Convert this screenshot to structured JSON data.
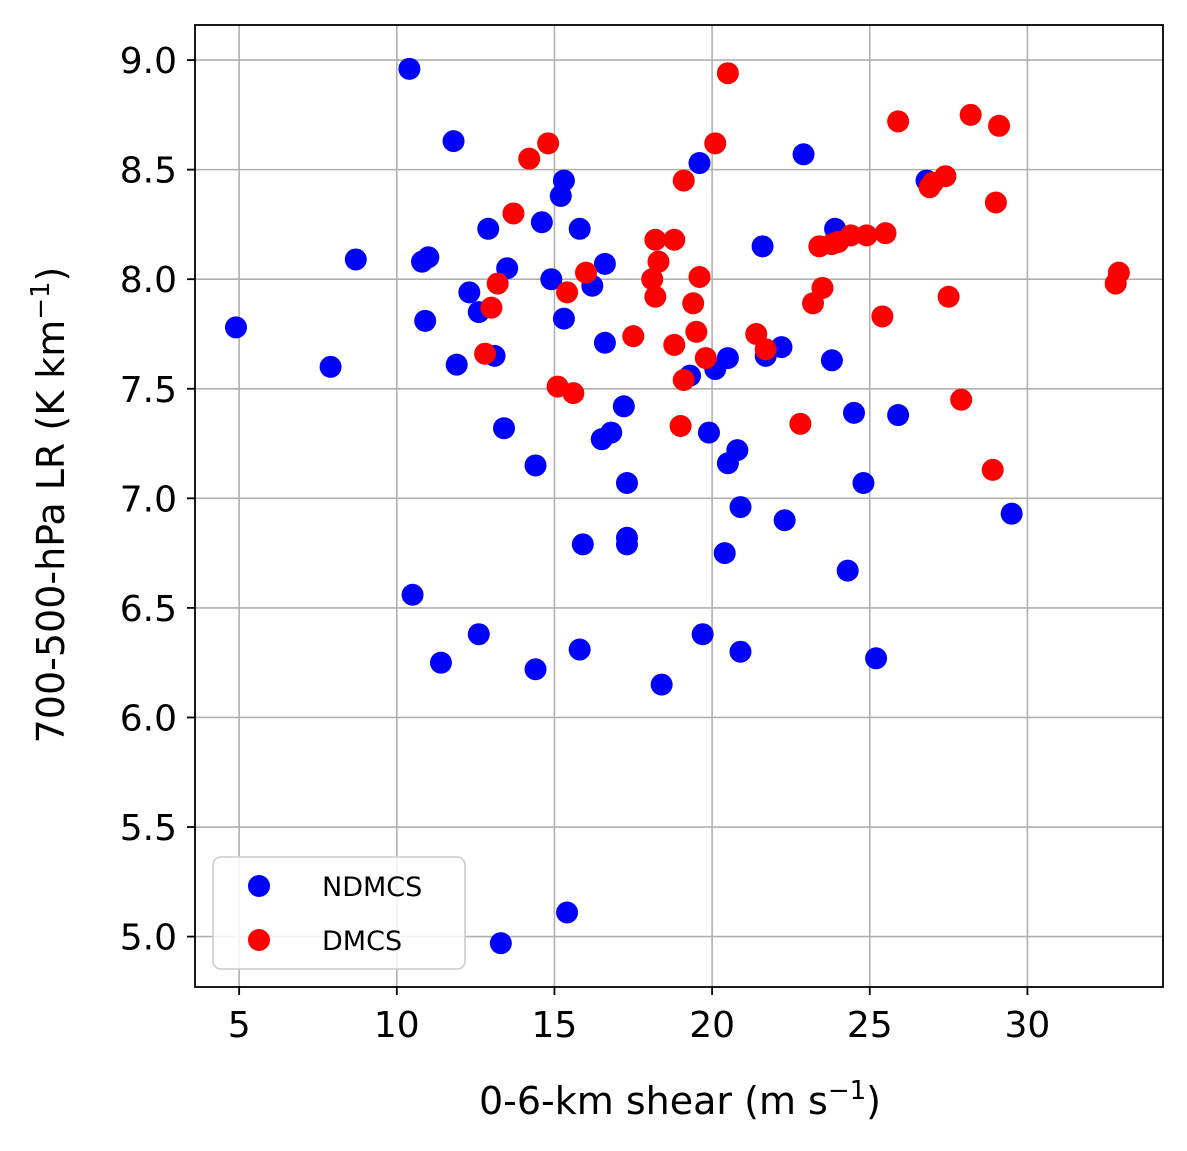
{
  "chart_data": {
    "type": "scatter",
    "xlabel_main": "0-6-km shear (m s",
    "xlabel_sup": "−1",
    "xlabel_end": ")",
    "ylabel_main": "700-500-hPa LR (K km",
    "ylabel_sup": "−1",
    "ylabel_end": ")",
    "xlim": [
      3.6,
      34.3
    ],
    "ylim": [
      4.77,
      9.16
    ],
    "x_ticks": [
      5,
      10,
      15,
      20,
      25,
      30
    ],
    "y_ticks": [
      5.0,
      5.5,
      6.0,
      6.5,
      7.0,
      7.5,
      8.0,
      8.5,
      9.0
    ],
    "x_tick_labels": [
      "5",
      "10",
      "15",
      "20",
      "25",
      "30"
    ],
    "y_tick_labels": [
      "5.0",
      "5.5",
      "6.0",
      "6.5",
      "7.0",
      "7.5",
      "8.0",
      "8.5",
      "9.0"
    ],
    "grid": true,
    "legend_position": "lower-left",
    "series": [
      {
        "name": "NDMCS",
        "color": "#0000ff",
        "points": [
          [
            4.9,
            7.78
          ],
          [
            7.9,
            7.6
          ],
          [
            8.7,
            8.09
          ],
          [
            10.4,
            8.96
          ],
          [
            10.5,
            6.56
          ],
          [
            10.8,
            8.08
          ],
          [
            11.0,
            8.1
          ],
          [
            10.9,
            7.81
          ],
          [
            11.4,
            6.25
          ],
          [
            11.8,
            8.63
          ],
          [
            11.9,
            7.61
          ],
          [
            12.3,
            7.94
          ],
          [
            12.6,
            7.85
          ],
          [
            12.6,
            6.38
          ],
          [
            12.9,
            8.23
          ],
          [
            13.1,
            7.65
          ],
          [
            13.3,
            4.97
          ],
          [
            13.4,
            7.32
          ],
          [
            13.5,
            8.05
          ],
          [
            14.4,
            7.15
          ],
          [
            14.4,
            6.22
          ],
          [
            14.6,
            8.26
          ],
          [
            14.9,
            8.0
          ],
          [
            15.2,
            8.38
          ],
          [
            15.3,
            8.45
          ],
          [
            15.3,
            7.82
          ],
          [
            15.4,
            5.11
          ],
          [
            15.8,
            8.23
          ],
          [
            15.8,
            6.31
          ],
          [
            15.9,
            6.79
          ],
          [
            16.2,
            7.97
          ],
          [
            16.5,
            7.27
          ],
          [
            16.6,
            8.07
          ],
          [
            16.6,
            7.71
          ],
          [
            16.8,
            7.3
          ],
          [
            17.2,
            7.42
          ],
          [
            17.3,
            7.07
          ],
          [
            17.3,
            6.79
          ],
          [
            17.3,
            6.82
          ],
          [
            18.4,
            6.15
          ],
          [
            19.3,
            7.56
          ],
          [
            19.6,
            8.53
          ],
          [
            19.7,
            6.38
          ],
          [
            19.9,
            7.3
          ],
          [
            20.1,
            7.59
          ],
          [
            20.4,
            6.75
          ],
          [
            20.5,
            7.64
          ],
          [
            20.5,
            7.16
          ],
          [
            20.8,
            7.22
          ],
          [
            20.9,
            6.96
          ],
          [
            20.9,
            6.3
          ],
          [
            21.6,
            8.15
          ],
          [
            21.7,
            7.65
          ],
          [
            22.2,
            7.69
          ],
          [
            22.3,
            6.9
          ],
          [
            22.9,
            8.57
          ],
          [
            23.8,
            7.63
          ],
          [
            23.9,
            8.23
          ],
          [
            24.3,
            6.67
          ],
          [
            24.5,
            7.39
          ],
          [
            24.8,
            7.07
          ],
          [
            25.2,
            6.27
          ],
          [
            25.9,
            7.38
          ],
          [
            26.8,
            8.45
          ],
          [
            29.5,
            6.93
          ]
        ]
      },
      {
        "name": "DMCS",
        "color": "#ff0000",
        "points": [
          [
            12.8,
            7.66
          ],
          [
            13.0,
            7.87
          ],
          [
            13.2,
            7.98
          ],
          [
            13.7,
            8.3
          ],
          [
            14.2,
            8.55
          ],
          [
            14.8,
            8.62
          ],
          [
            15.1,
            7.51
          ],
          [
            15.4,
            7.94
          ],
          [
            15.6,
            7.48
          ],
          [
            16.0,
            8.03
          ],
          [
            17.5,
            7.74
          ],
          [
            18.1,
            8.0
          ],
          [
            18.2,
            8.18
          ],
          [
            18.2,
            7.92
          ],
          [
            18.3,
            8.08
          ],
          [
            18.8,
            8.18
          ],
          [
            18.8,
            7.7
          ],
          [
            19.0,
            7.33
          ],
          [
            19.1,
            8.45
          ],
          [
            19.1,
            7.54
          ],
          [
            19.4,
            7.89
          ],
          [
            19.5,
            7.76
          ],
          [
            19.6,
            8.01
          ],
          [
            19.8,
            7.64
          ],
          [
            20.1,
            8.62
          ],
          [
            20.5,
            8.94
          ],
          [
            21.4,
            7.75
          ],
          [
            21.7,
            7.68
          ],
          [
            22.8,
            7.34
          ],
          [
            23.2,
            7.89
          ],
          [
            23.4,
            8.15
          ],
          [
            23.5,
            7.96
          ],
          [
            23.8,
            8.16
          ],
          [
            24.0,
            8.17
          ],
          [
            24.4,
            8.2
          ],
          [
            24.9,
            8.2
          ],
          [
            25.4,
            7.83
          ],
          [
            25.5,
            8.21
          ],
          [
            25.9,
            8.72
          ],
          [
            26.9,
            8.42
          ],
          [
            27.0,
            8.44
          ],
          [
            27.4,
            8.47
          ],
          [
            27.5,
            7.92
          ],
          [
            27.9,
            7.45
          ],
          [
            28.2,
            8.75
          ],
          [
            28.9,
            7.13
          ],
          [
            29.0,
            8.35
          ],
          [
            29.1,
            8.7
          ],
          [
            32.8,
            7.98
          ],
          [
            32.9,
            8.03
          ]
        ]
      }
    ]
  }
}
